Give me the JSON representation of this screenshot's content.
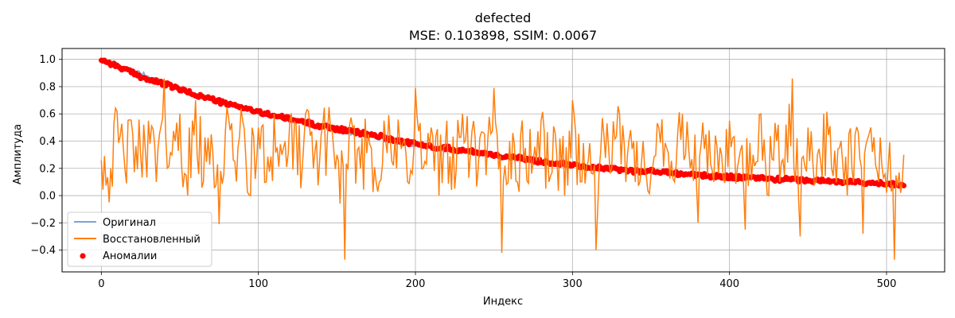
{
  "chart_data": {
    "type": "line",
    "title": "defected",
    "subtitle": "MSE: 0.103898, SSIM: 0.0067",
    "xlabel": "Индекс",
    "ylabel": "Амплитуда",
    "xlim": [
      -25,
      537
    ],
    "ylim": [
      -0.56,
      1.08
    ],
    "xticks": [
      0,
      100,
      200,
      300,
      400,
      500
    ],
    "yticks": [
      -0.4,
      -0.2,
      0.0,
      0.2,
      0.4,
      0.6,
      0.8,
      1.0
    ],
    "xtick_labels": [
      "0",
      "100",
      "200",
      "300",
      "400",
      "500"
    ],
    "ytick_labels": [
      "−0.4",
      "−0.2",
      "0.0",
      "0.2",
      "0.4",
      "0.6",
      "0.8",
      "1.0"
    ],
    "grid": true,
    "legend_position": "lower-left",
    "n_points": 512,
    "series": [
      {
        "name": "Оригинал",
        "kind": "line",
        "color": "#7aa6d6",
        "x": [
          0,
          25,
          50,
          75,
          100,
          125,
          150,
          175,
          200,
          225,
          250,
          275,
          300,
          325,
          350,
          375,
          400,
          425,
          450,
          475,
          500,
          511
        ],
        "values": [
          1.0,
          0.9,
          0.78,
          0.69,
          0.61,
          0.55,
          0.48,
          0.42,
          0.37,
          0.33,
          0.29,
          0.25,
          0.22,
          0.2,
          0.18,
          0.16,
          0.14,
          0.12,
          0.11,
          0.1,
          0.09,
          0.08
        ]
      },
      {
        "name": "Восстановленный",
        "kind": "line",
        "color": "#ff7f0e",
        "x": [
          0,
          5,
          10,
          15,
          20,
          25,
          30,
          35,
          40,
          45,
          50,
          55,
          60,
          65,
          70,
          75,
          80,
          85,
          90,
          95,
          100,
          105,
          110,
          115,
          120,
          125,
          130,
          135,
          140,
          145,
          150,
          155,
          160,
          165,
          170,
          175,
          180,
          185,
          190,
          195,
          200,
          205,
          210,
          215,
          220,
          225,
          230,
          235,
          240,
          245,
          250,
          255,
          260,
          265,
          270,
          275,
          280,
          285,
          290,
          295,
          300,
          305,
          310,
          315,
          320,
          325,
          330,
          335,
          340,
          345,
          350,
          355,
          360,
          365,
          370,
          375,
          380,
          385,
          390,
          395,
          400,
          405,
          410,
          415,
          420,
          425,
          430,
          435,
          440,
          445,
          450,
          455,
          460,
          465,
          470,
          475,
          480,
          485,
          490,
          495,
          500,
          505,
          511
        ],
        "values": [
          0.26,
          -0.05,
          0.62,
          0.2,
          0.45,
          0.3,
          0.55,
          0.1,
          0.86,
          0.3,
          0.6,
          0.0,
          0.7,
          0.1,
          0.45,
          -0.21,
          0.65,
          0.25,
          0.55,
          0.0,
          0.5,
          0.1,
          0.6,
          0.3,
          0.55,
          0.15,
          0.6,
          0.2,
          0.45,
          0.65,
          0.3,
          -0.47,
          0.5,
          0.2,
          0.45,
          0.1,
          0.55,
          0.25,
          0.4,
          0.1,
          0.79,
          0.2,
          0.5,
          0.0,
          0.55,
          0.05,
          0.6,
          0.3,
          0.2,
          0.15,
          0.79,
          -0.42,
          0.4,
          0.1,
          0.35,
          0.25,
          0.55,
          0.1,
          0.3,
          0.0,
          0.7,
          0.1,
          0.25,
          -0.4,
          0.45,
          0.2,
          0.6,
          0.3,
          0.1,
          0.4,
          0.15,
          0.5,
          0.35,
          0.1,
          0.6,
          0.2,
          -0.2,
          0.45,
          0.1,
          0.3,
          0.55,
          0.2,
          -0.25,
          0.3,
          0.6,
          0.0,
          0.4,
          0.15,
          0.86,
          -0.3,
          0.5,
          0.1,
          0.6,
          0.2,
          0.35,
          0.0,
          0.45,
          -0.28,
          0.5,
          0.1,
          0.02,
          -0.47,
          0.3
        ]
      },
      {
        "name": "Аномалии",
        "kind": "scatter",
        "color": "#ff0000",
        "x": [
          0,
          10,
          20,
          30,
          40,
          50,
          60,
          70,
          80,
          90,
          100,
          110,
          120,
          130,
          140,
          150,
          160,
          170,
          180,
          190,
          200,
          210,
          220,
          230,
          240,
          250,
          260,
          270,
          280,
          290,
          300,
          310,
          320,
          330,
          340,
          350,
          360,
          370,
          380,
          390,
          400,
          410,
          420,
          430,
          440,
          450,
          460,
          470,
          480,
          490,
          500,
          511
        ],
        "values": [
          1.0,
          0.95,
          0.9,
          0.85,
          0.82,
          0.78,
          0.74,
          0.71,
          0.67,
          0.65,
          0.61,
          0.59,
          0.56,
          0.54,
          0.51,
          0.49,
          0.47,
          0.45,
          0.43,
          0.4,
          0.38,
          0.36,
          0.35,
          0.33,
          0.32,
          0.3,
          0.28,
          0.27,
          0.25,
          0.24,
          0.23,
          0.21,
          0.2,
          0.19,
          0.18,
          0.18,
          0.17,
          0.16,
          0.15,
          0.14,
          0.14,
          0.13,
          0.13,
          0.12,
          0.12,
          0.11,
          0.11,
          0.1,
          0.1,
          0.09,
          0.09,
          0.08
        ]
      }
    ]
  }
}
